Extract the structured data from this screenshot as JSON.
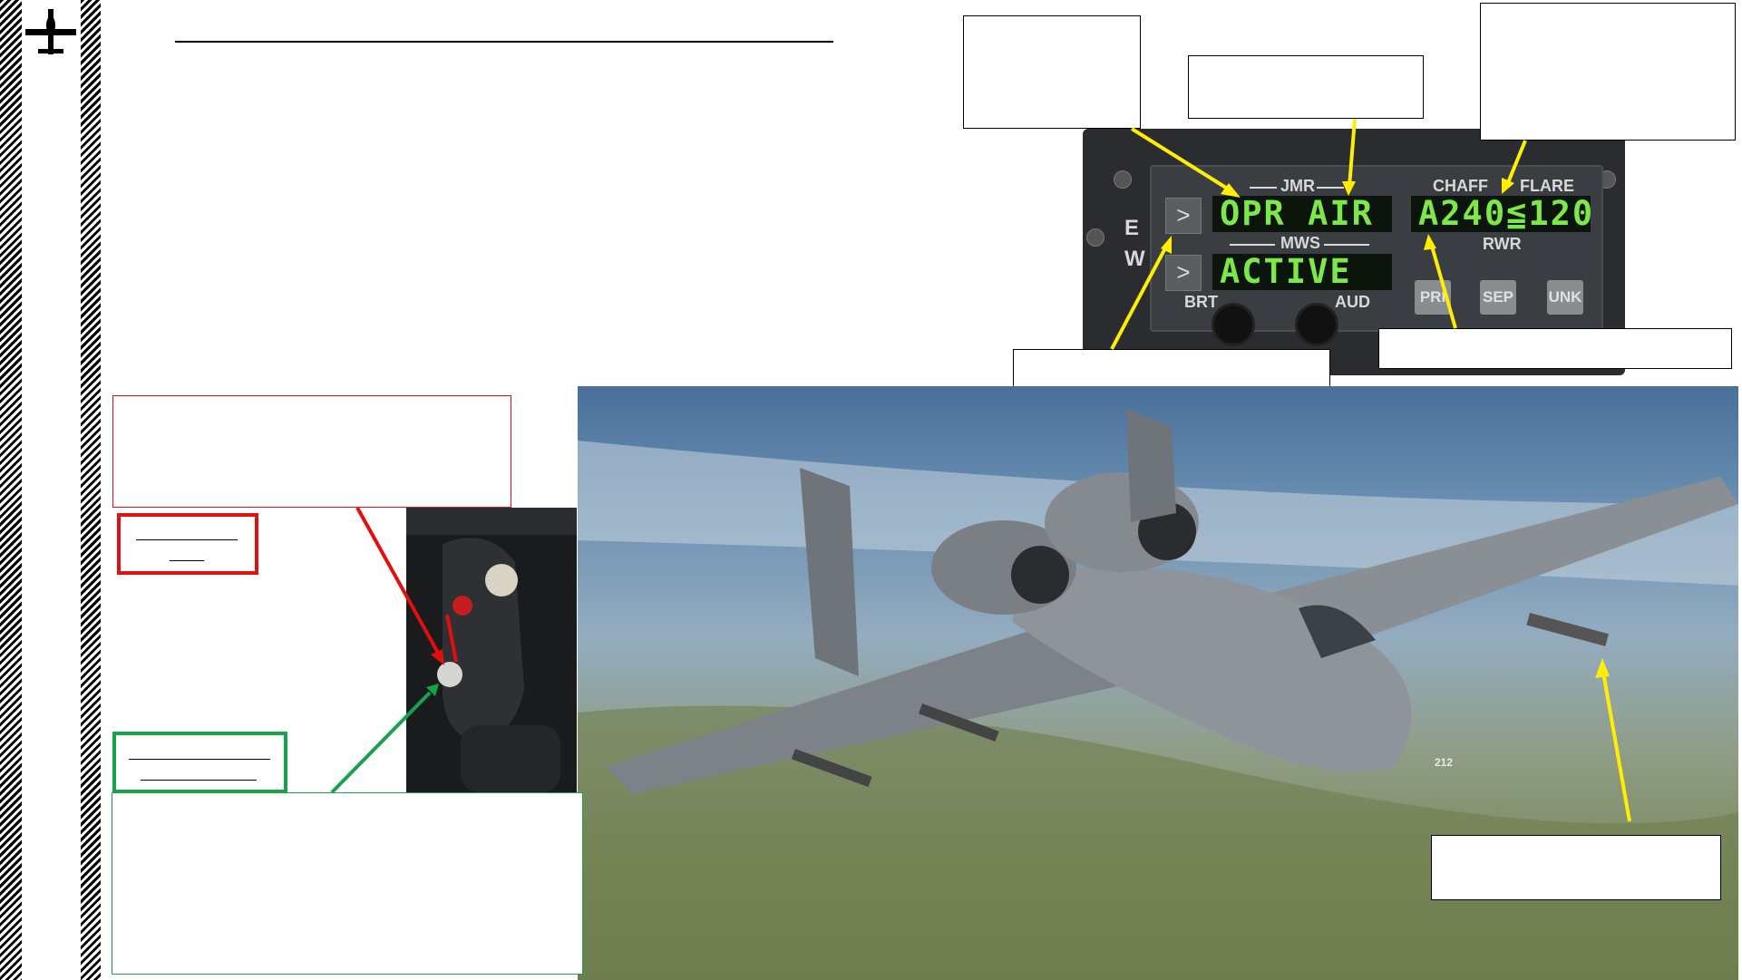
{
  "ewp": {
    "jmr_label": "JMR",
    "mws_label": "MWS",
    "chaff_label": "CHAFF",
    "flare_label": "FLARE",
    "rwr_label": "RWR",
    "jmr_display": "OPR AIR",
    "mws_display": "ACTIVE",
    "counter_display": "A240≦120",
    "e_label": "E",
    "w_label": "W",
    "brt_label": "BRT",
    "aud_label": "AUD",
    "pri_button": "PRI",
    "sep_button": "SEP",
    "unk_button": "UNK",
    "arrow_glyph": ">"
  },
  "aircraft": {
    "tail_number": "212"
  },
  "colors": {
    "callout_arrow": "#ffee00",
    "red_callout": "#e01010",
    "green_callout": "#17a34a",
    "lcd_text": "#7ee84a"
  }
}
